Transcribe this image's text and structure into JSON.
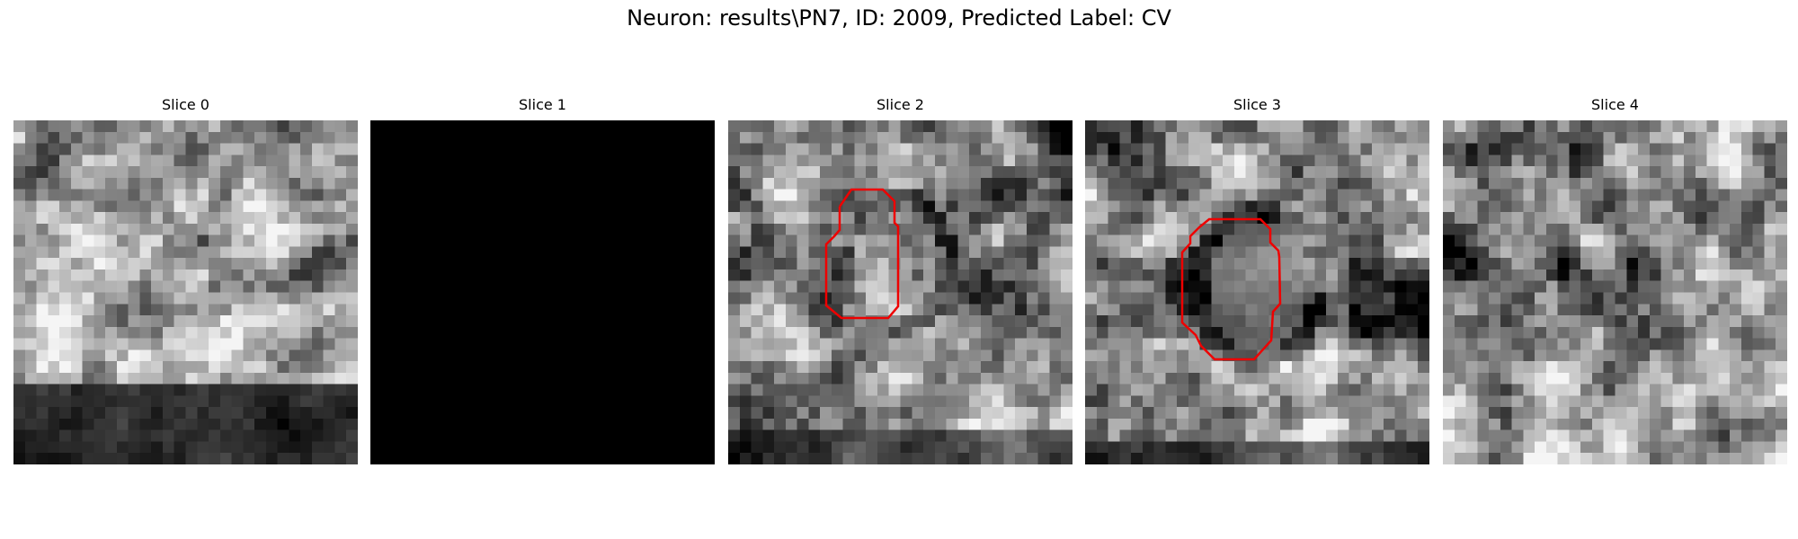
{
  "figure": {
    "suptitle": "Neuron: results\\PN7, ID: 2009, Predicted Label: CV"
  },
  "panels": [
    {
      "title": "Slice 0",
      "content": "grayscale-em-patch",
      "contour": false
    },
    {
      "title": "Slice 1",
      "content": "blank-black-patch",
      "contour": false
    },
    {
      "title": "Slice 2",
      "content": "grayscale-em-patch",
      "contour": true
    },
    {
      "title": "Slice 3",
      "content": "grayscale-em-patch",
      "contour": true
    },
    {
      "title": "Slice 4",
      "content": "grayscale-em-patch",
      "contour": false
    }
  ],
  "colors": {
    "contour": "#ee0000",
    "background": "#ffffff"
  }
}
